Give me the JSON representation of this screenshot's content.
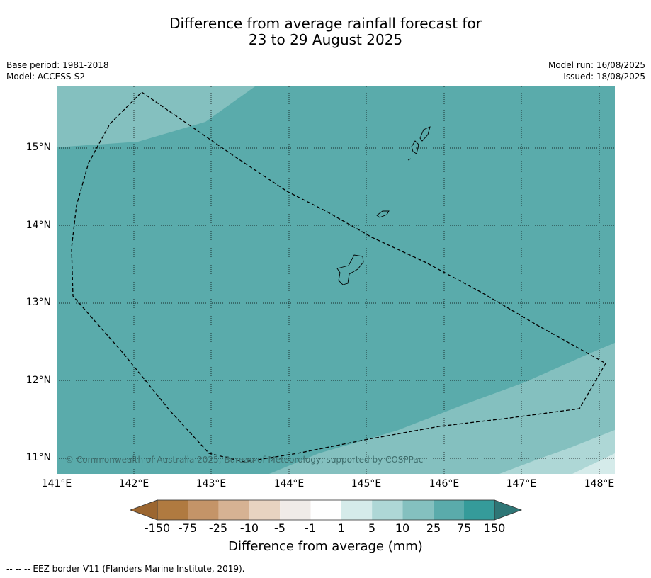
{
  "title_line1": "Difference from average rainfall forecast for",
  "title_line2": "23 to 29 August 2025",
  "base_period": "Base period: 1981-2018",
  "model": "Model: ACCESS-S2",
  "model_run": "Model run: 16/08/2025",
  "issued": "Issued: 18/08/2025",
  "copyright": "© Commonwealth of Australia 2025, Bureau of Meteorology, supported by COSPPac",
  "lat_labels": [
    "15°N",
    "14°N",
    "13°N",
    "12°N",
    "11°N"
  ],
  "lon_labels": [
    "141°E",
    "142°E",
    "143°E",
    "144°E",
    "145°E",
    "146°E",
    "147°E",
    "148°E"
  ],
  "colorbar": {
    "title": "Difference from average (mm)",
    "tick_labels": [
      "-150",
      "-75",
      "-25",
      "-10",
      "-5",
      "-1",
      "1",
      "5",
      "10",
      "25",
      "75",
      "150"
    ],
    "colors": [
      "#9c6630",
      "#b07a40",
      "#c49468",
      "#d6b293",
      "#e8d3c1",
      "#f0ebe8",
      "#ffffff",
      "#d5ebea",
      "#aed7d6",
      "#84c0bf",
      "#5aabab",
      "#359b9a",
      "#2e7676"
    ]
  },
  "footer": "--  --  -- EEZ border V11 (Flanders Marine Institute, 2019)."
}
